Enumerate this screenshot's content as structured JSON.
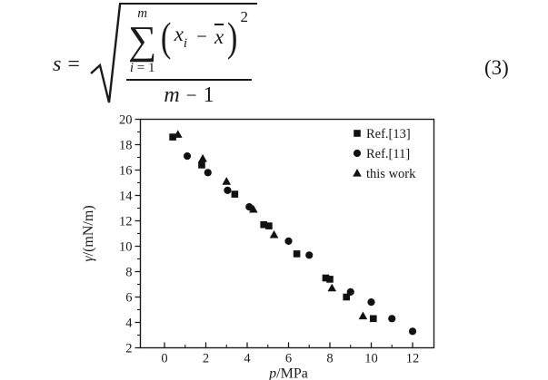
{
  "equation": {
    "lhs": "s",
    "equals": "=",
    "sum_upper": "m",
    "sigma": "∑",
    "lower_var": "i",
    "lower_eq": "=",
    "lower_val": "1",
    "open_paren": "(",
    "var_x": "x",
    "sub_i": "i",
    "minus": "−",
    "xbar_var": "x",
    "close_paren": ")",
    "exponent": "2",
    "den_var": "m",
    "den_minus": "−",
    "den_val": "1",
    "number": "(3)"
  },
  "chart_data": {
    "type": "scatter",
    "title": "",
    "xlabel": "p/MPa",
    "ylabel": "γ/(mN/m)",
    "xlim": [
      -1.2,
      13.05
    ],
    "ylim": [
      2,
      20
    ],
    "x_ticks": [
      0,
      2,
      4,
      6,
      8,
      10,
      12
    ],
    "x_minor_ticks": [
      1,
      3,
      5,
      7,
      9,
      11,
      13
    ],
    "y_ticks": [
      2,
      4,
      6,
      8,
      10,
      12,
      14,
      16,
      18,
      20
    ],
    "y_minor_ticks": [
      3,
      5,
      7,
      9,
      11,
      13,
      15,
      17,
      19
    ],
    "grid": false,
    "legend_position": "top-right",
    "series": [
      {
        "name": "Ref.[13]",
        "marker": "square",
        "points": [
          [
            0.4,
            18.6
          ],
          [
            1.8,
            16.4
          ],
          [
            3.4,
            14.1
          ],
          [
            4.8,
            11.7
          ],
          [
            5.05,
            11.6
          ],
          [
            6.4,
            9.4
          ],
          [
            7.8,
            7.5
          ],
          [
            8.0,
            7.4
          ],
          [
            8.8,
            6.0
          ],
          [
            10.1,
            4.3
          ]
        ]
      },
      {
        "name": "Ref.[11]",
        "marker": "circle",
        "points": [
          [
            1.1,
            17.1
          ],
          [
            2.1,
            15.8
          ],
          [
            3.05,
            14.4
          ],
          [
            4.1,
            13.1
          ],
          [
            6.0,
            10.4
          ],
          [
            7.0,
            9.3
          ],
          [
            9.0,
            6.4
          ],
          [
            10.0,
            5.6
          ],
          [
            11.0,
            4.3
          ],
          [
            12.0,
            3.3
          ]
        ]
      },
      {
        "name": "this work",
        "marker": "triangle",
        "points": [
          [
            0.65,
            18.8
          ],
          [
            1.85,
            16.9
          ],
          [
            3.0,
            15.1
          ],
          [
            4.3,
            12.9
          ],
          [
            5.3,
            10.9
          ],
          [
            8.1,
            6.7
          ],
          [
            9.6,
            4.5
          ]
        ]
      }
    ]
  },
  "colors": {
    "marker": "#111111",
    "axis": "#1c1c1c",
    "text": "#1a1a1a",
    "background": "#ffffff"
  }
}
